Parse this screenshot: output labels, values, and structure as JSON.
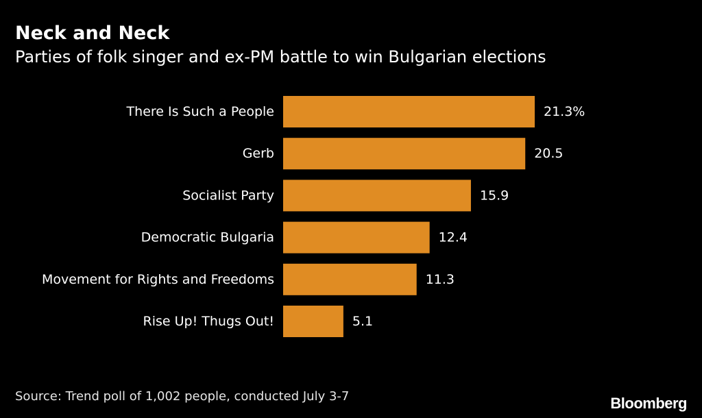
{
  "header": {
    "title": "Neck and Neck",
    "subtitle": "Parties of folk singer and ex-PM battle to win Bulgarian elections"
  },
  "chart_data": {
    "type": "bar",
    "orientation": "horizontal",
    "title": "Neck and Neck",
    "subtitle": "Parties of folk singer and ex-PM battle to win Bulgarian elections",
    "xlabel": "",
    "ylabel": "",
    "xlim": [
      0,
      21.3
    ],
    "grid": false,
    "bar_color": "#e08c23",
    "categories": [
      "There Is Such a People",
      "Gerb",
      "Socialist Party",
      "Democratic Bulgaria",
      "Movement for Rights and Freedoms",
      "Rise Up! Thugs Out!"
    ],
    "values": [
      21.3,
      20.5,
      15.9,
      12.4,
      11.3,
      5.1
    ],
    "value_labels": [
      "21.3%",
      "20.5",
      "15.9",
      "12.4",
      "11.3",
      "5.1"
    ]
  },
  "footer": {
    "source": "Source: Trend poll of 1,002 people, conducted July 3-7",
    "logo": "Bloomberg"
  },
  "colors": {
    "background": "#000000",
    "text": "#ffffff",
    "bar": "#e08c23"
  }
}
